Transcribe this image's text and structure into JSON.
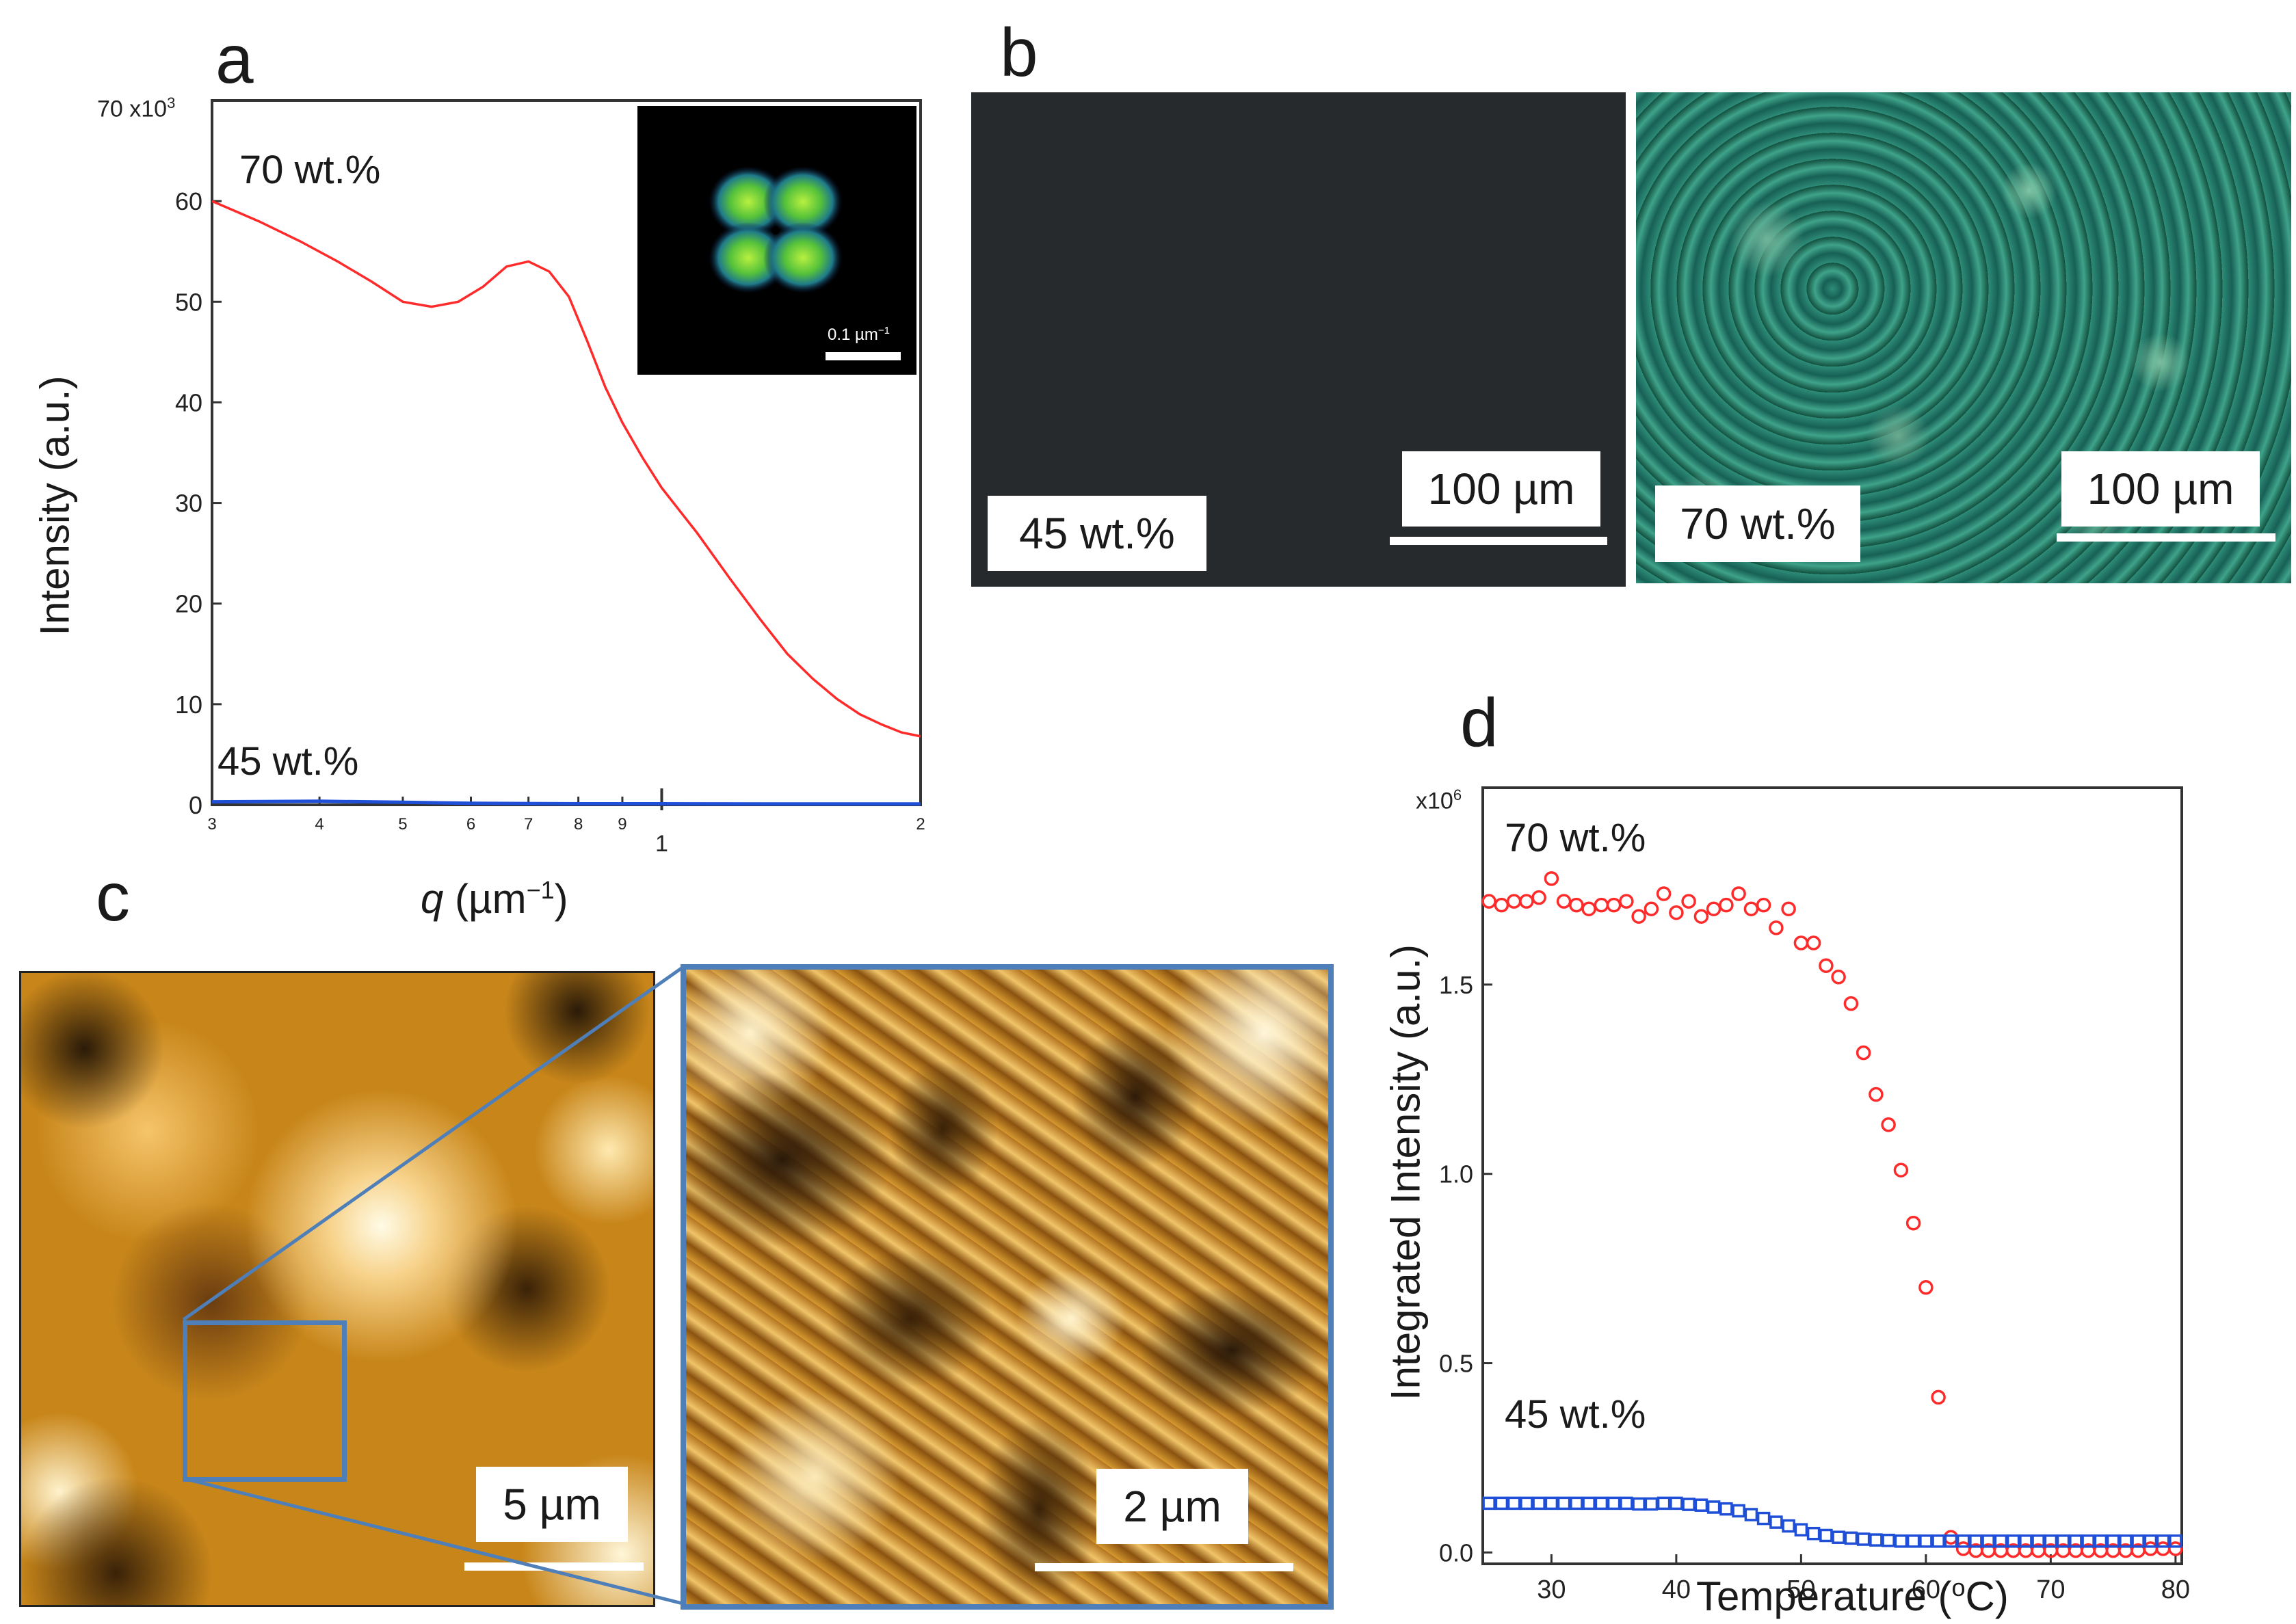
{
  "panels": {
    "a": "a",
    "b": "b",
    "c": "c",
    "d": "d"
  },
  "colors": {
    "red_series": "#ff2a2a",
    "blue_series": "#1f4fd6",
    "microscope_green": "#1d6b60",
    "afm_gold": "#c8861a",
    "inset_frame": "#4f7fb8"
  },
  "chart_data": [
    {
      "id": "panel-a",
      "type": "line",
      "title": "",
      "xlabel_prefix": "q",
      "xlabel_suffix": "(µm",
      "xlabel_exp": "−1",
      "xlabel_close": ")",
      "ylabel": "Intensity (a.u.)",
      "yaxis_multiplier": "70 x10",
      "yaxis_multiplier_exp": "3",
      "xscale": "log",
      "xlim": [
        0.3,
        2.0
      ],
      "ylim": [
        0,
        70000
      ],
      "yticks": [
        {
          "v": 0,
          "label": "0"
        },
        {
          "v": 10000,
          "label": "10"
        },
        {
          "v": 20000,
          "label": "20"
        },
        {
          "v": 30000,
          "label": "30"
        },
        {
          "v": 40000,
          "label": "40"
        },
        {
          "v": 50000,
          "label": "50"
        },
        {
          "v": 60000,
          "label": "60"
        }
      ],
      "xticks_minor": [
        {
          "v": 0.3,
          "label": "3"
        },
        {
          "v": 0.4,
          "label": "4"
        },
        {
          "v": 0.5,
          "label": "5"
        },
        {
          "v": 0.6,
          "label": "6"
        },
        {
          "v": 0.7,
          "label": "7"
        },
        {
          "v": 0.8,
          "label": "8"
        },
        {
          "v": 0.9,
          "label": "9"
        },
        {
          "v": 2.0,
          "label": "2"
        }
      ],
      "xticks_major": [
        {
          "v": 1.0,
          "label": "1"
        }
      ],
      "series": [
        {
          "name": "70 wt.%",
          "color": "#ff2a2a",
          "x": [
            0.3,
            0.34,
            0.38,
            0.42,
            0.46,
            0.5,
            0.54,
            0.58,
            0.62,
            0.66,
            0.7,
            0.74,
            0.78,
            0.82,
            0.86,
            0.9,
            0.95,
            1.0,
            1.1,
            1.2,
            1.3,
            1.4,
            1.5,
            1.6,
            1.7,
            1.8,
            1.9,
            2.0
          ],
          "y": [
            60000,
            58000,
            56000,
            54000,
            52000,
            50000,
            49500,
            50000,
            51500,
            53500,
            54000,
            53000,
            50500,
            46000,
            41500,
            38000,
            34500,
            31500,
            27000,
            22500,
            18500,
            15000,
            12500,
            10500,
            9000,
            8000,
            7200,
            6800
          ]
        },
        {
          "name": "45 wt.%",
          "color": "#1f4fd6",
          "x": [
            0.3,
            0.4,
            0.5,
            0.6,
            0.8,
            1.0,
            1.5,
            2.0
          ],
          "y": [
            300,
            350,
            250,
            150,
            100,
            100,
            80,
            80
          ]
        }
      ],
      "inset": {
        "scale_label": "0.1 µm",
        "scale_label_exp": "−1"
      }
    },
    {
      "id": "panel-d",
      "type": "scatter",
      "xlabel": "Temperature (",
      "xlabel_sup": "o",
      "xlabel_end": "C)",
      "ylabel": "Integrated Intensity (a.u.)",
      "yaxis_multiplier": "x10",
      "yaxis_multiplier_exp": "6",
      "xlim": [
        24.5,
        80.5
      ],
      "ylim": [
        -0.03,
        2.02
      ],
      "xticks": [
        30,
        40,
        50,
        60,
        70,
        80
      ],
      "yticks": [
        {
          "v": 0.0,
          "label": "0.0"
        },
        {
          "v": 0.5,
          "label": "0.5"
        },
        {
          "v": 1.0,
          "label": "1.0"
        },
        {
          "v": 1.5,
          "label": "1.5"
        }
      ],
      "series": [
        {
          "name": "70 wt.%",
          "marker": "circle",
          "color": "#ff2a2a",
          "x": [
            25,
            26,
            27,
            28,
            29,
            30,
            31,
            32,
            33,
            34,
            35,
            36,
            37,
            38,
            39,
            40,
            41,
            42,
            43,
            44,
            45,
            46,
            47,
            48,
            49,
            50,
            51,
            52,
            53,
            54,
            55,
            56,
            57,
            58,
            59,
            60,
            61,
            62,
            63,
            64,
            65,
            66,
            67,
            68,
            69,
            70,
            71,
            72,
            73,
            74,
            75,
            76,
            77,
            78,
            79,
            80
          ],
          "y": [
            1.72,
            1.71,
            1.72,
            1.72,
            1.73,
            1.78,
            1.72,
            1.71,
            1.7,
            1.71,
            1.71,
            1.72,
            1.68,
            1.7,
            1.74,
            1.69,
            1.72,
            1.68,
            1.7,
            1.71,
            1.74,
            1.7,
            1.71,
            1.65,
            1.7,
            1.61,
            1.61,
            1.55,
            1.52,
            1.45,
            1.32,
            1.21,
            1.13,
            1.01,
            0.87,
            0.7,
            0.41,
            0.04,
            0.01,
            0.005,
            0.005,
            0.005,
            0.005,
            0.005,
            0.005,
            0.005,
            0.005,
            0.005,
            0.005,
            0.005,
            0.005,
            0.005,
            0.005,
            0.01,
            0.01,
            0.01
          ]
        },
        {
          "name": "45 wt.%",
          "marker": "square",
          "color": "#1f4fd6",
          "x": [
            25,
            26,
            27,
            28,
            29,
            30,
            31,
            32,
            33,
            34,
            35,
            36,
            37,
            38,
            39,
            40,
            41,
            42,
            43,
            44,
            45,
            46,
            47,
            48,
            49,
            50,
            51,
            52,
            53,
            54,
            55,
            56,
            57,
            58,
            59,
            60,
            61,
            62,
            63,
            64,
            65,
            66,
            67,
            68,
            69,
            70,
            71,
            72,
            73,
            74,
            75,
            76,
            77,
            78,
            79,
            80
          ],
          "y": [
            0.13,
            0.13,
            0.13,
            0.13,
            0.13,
            0.13,
            0.13,
            0.13,
            0.13,
            0.13,
            0.13,
            0.13,
            0.128,
            0.128,
            0.13,
            0.13,
            0.127,
            0.125,
            0.12,
            0.115,
            0.11,
            0.1,
            0.09,
            0.08,
            0.07,
            0.06,
            0.05,
            0.045,
            0.04,
            0.038,
            0.035,
            0.033,
            0.032,
            0.03,
            0.03,
            0.03,
            0.03,
            0.03,
            0.03,
            0.03,
            0.03,
            0.03,
            0.03,
            0.03,
            0.03,
            0.03,
            0.03,
            0.03,
            0.03,
            0.03,
            0.03,
            0.03,
            0.03,
            0.03,
            0.03,
            0.03
          ]
        }
      ]
    }
  ],
  "panel_b": {
    "left_label": "45 wt.%",
    "left_scale": "100 µm",
    "right_label": "70 wt.%",
    "right_scale": "100 µm"
  },
  "panel_c": {
    "left_scale": "5 µm",
    "right_scale": "2 µm"
  }
}
